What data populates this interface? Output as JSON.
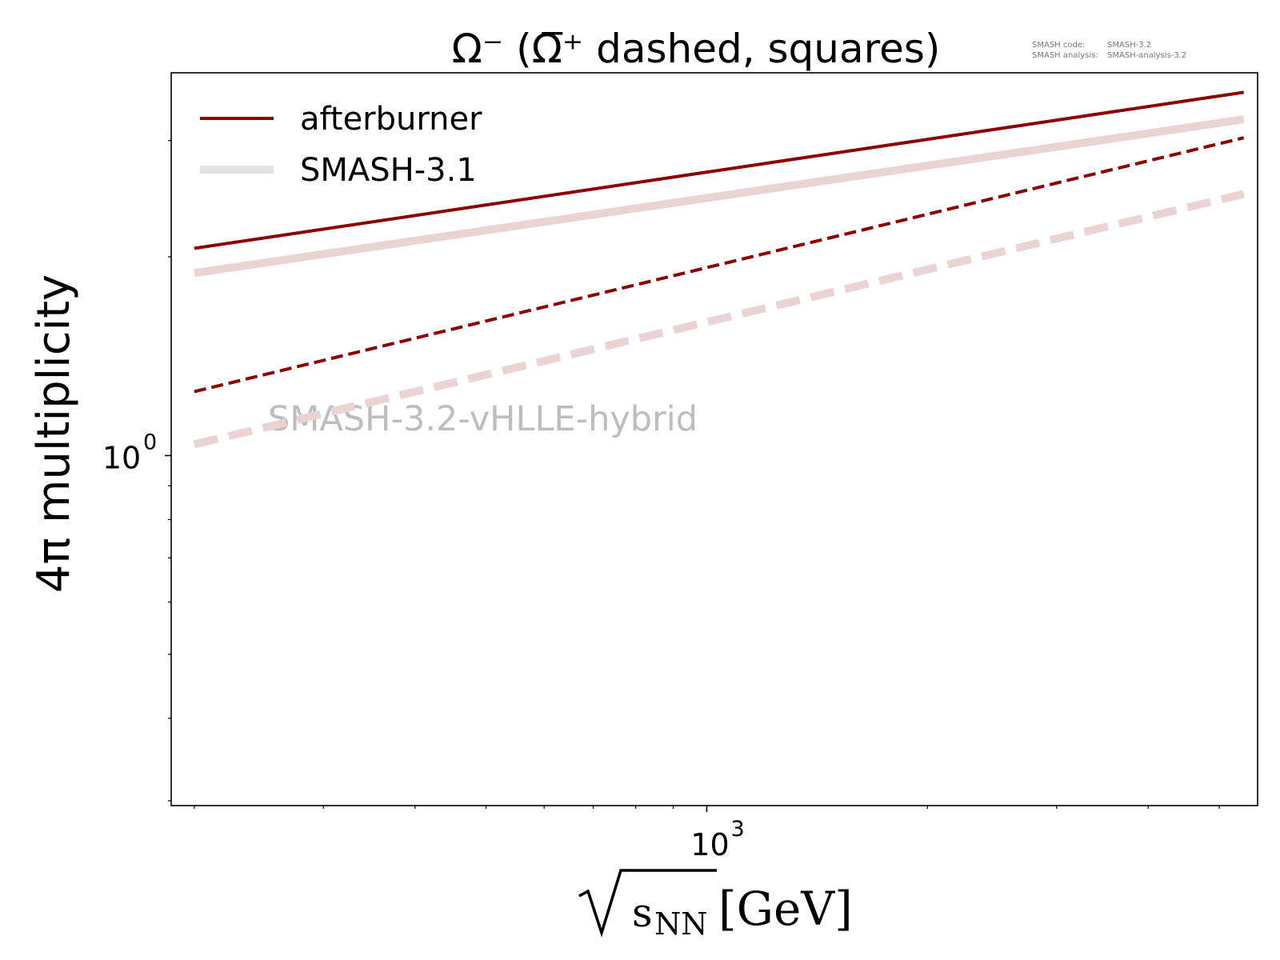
{
  "chart_data": {
    "type": "line",
    "title": "Ω⁻ (Ω̅⁺ dashed, squares)",
    "xlabel": "√s_NN [GeV]",
    "ylabel": "4π multiplicity",
    "x_scale": "log",
    "y_scale": "log",
    "xlim": [
      186,
      5640
    ],
    "ylim": [
      0.295,
      3.8
    ],
    "x_major_ticks": [
      {
        "value": 1000,
        "base": "10",
        "exponent": "3"
      }
    ],
    "y_major_ticks": [
      {
        "value": 1,
        "base": "10",
        "exponent": "0"
      }
    ],
    "x_minor_ticks": [
      200,
      300,
      400,
      500,
      600,
      700,
      800,
      900,
      2000,
      3000,
      4000,
      5000
    ],
    "y_minor_ticks": [
      0.3,
      0.4,
      0.5,
      0.6,
      0.7,
      0.8,
      0.9,
      2,
      3
    ],
    "grid": false,
    "legend_position": "upper-left",
    "series": [
      {
        "name": "afterburner",
        "style": "solid",
        "color": "#8b0000",
        "x": [
          200,
          5400
        ],
        "y": [
          2.06,
          3.55
        ]
      },
      {
        "name": "SMASH-3.1",
        "style": "solid",
        "color": "#ead3d3",
        "x": [
          200,
          5400
        ],
        "y": [
          1.89,
          3.23
        ]
      },
      {
        "style": "dashed",
        "color": "#8b0000",
        "x": [
          200,
          5400
        ],
        "y": [
          1.25,
          3.03
        ]
      },
      {
        "style": "dashed",
        "color": "#ead3d3",
        "x": [
          200,
          5400
        ],
        "y": [
          1.04,
          2.49
        ]
      }
    ],
    "annotations": {
      "watermark": "SMASH-3.2-vHLLE-hybrid",
      "version_labels": [
        {
          "key": "SMASH code:",
          "value": "SMASH-3.2"
        },
        {
          "key": "SMASH analysis:",
          "value": "SMASH-analysis-3.2"
        }
      ]
    }
  },
  "axis_text": {
    "y_label": "4π multiplicity",
    "x_label_radicand": "s",
    "x_label_subscript": "NN",
    "x_label_unit": "[GeV]"
  },
  "legend_style": {
    "afterburner_color": "#8b0000",
    "afterburner_width": 4,
    "smash31_color": "#e2e2e2",
    "smash31_width": 10
  },
  "colors": {
    "watermark": "#bdbdbd",
    "version_text": "#777777",
    "axes": "#000000"
  }
}
